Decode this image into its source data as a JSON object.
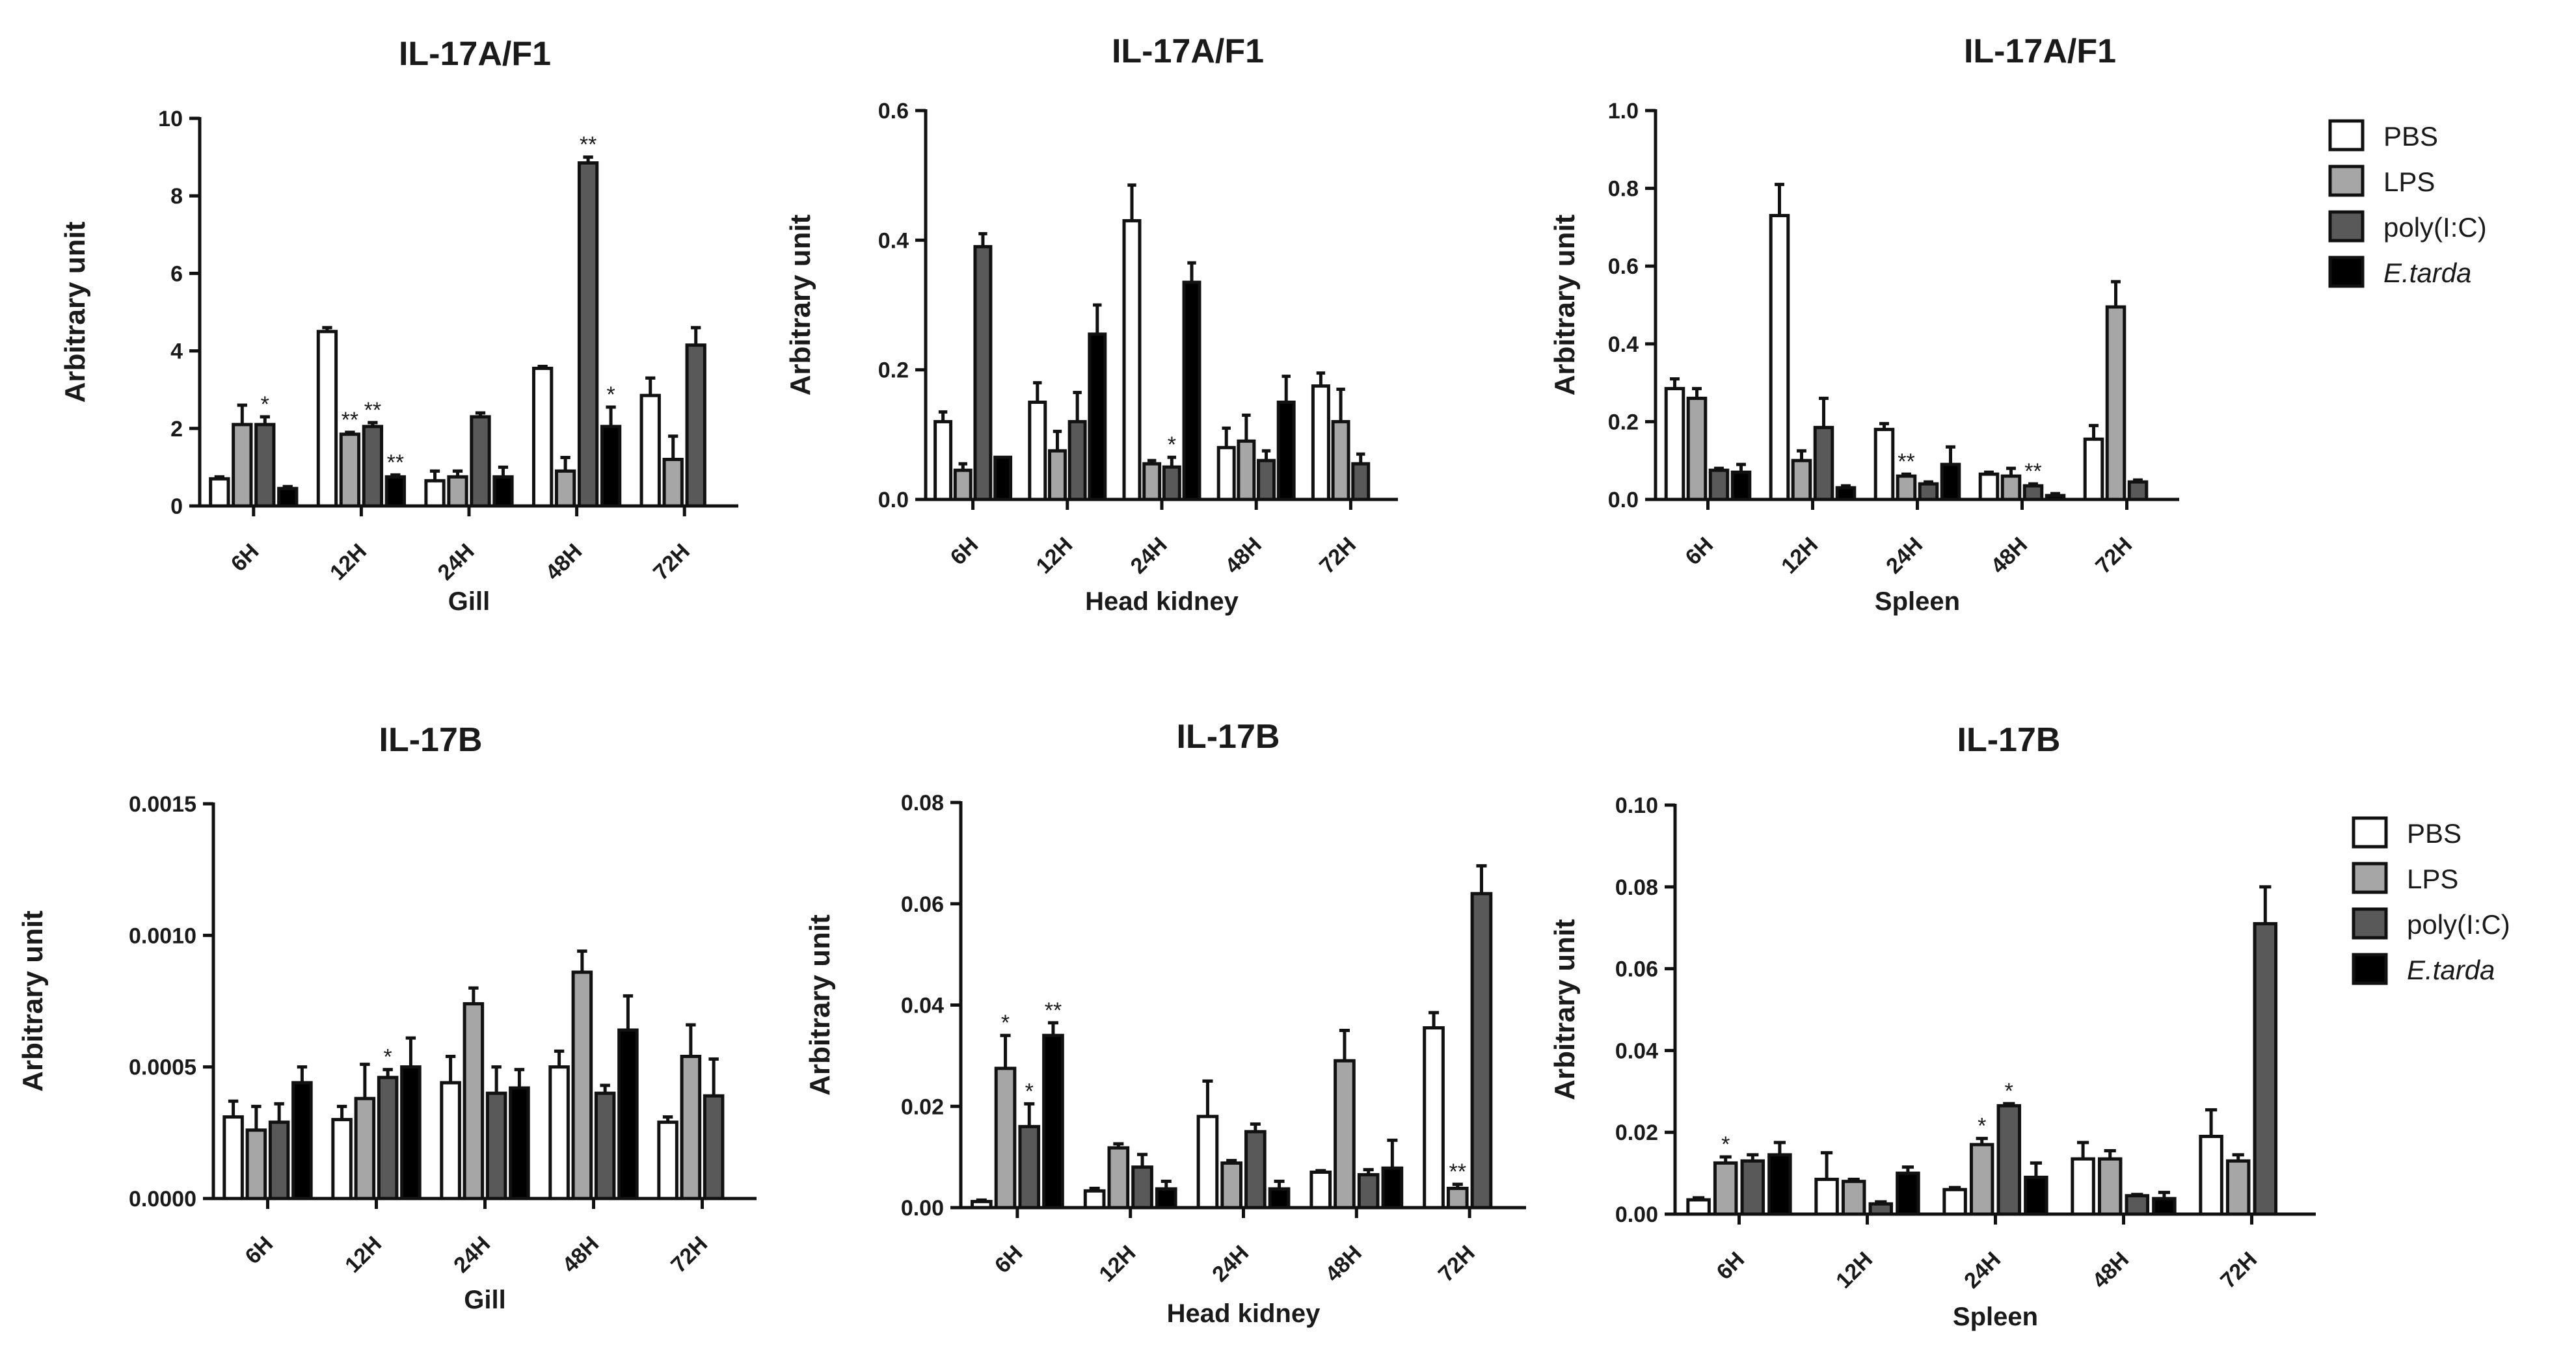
{
  "legend": [
    {
      "label": "PBS",
      "color": "#ffffff",
      "italic": false
    },
    {
      "label": "LPS",
      "color": "#a6a6a6",
      "italic": false
    },
    {
      "label": "poly(I:C)",
      "color": "#595959",
      "italic": false
    },
    {
      "label": "E.tarda",
      "color": "#000000",
      "italic": true
    }
  ],
  "chart_data": [
    {
      "type": "bar",
      "title": "IL-17A/F1",
      "xlabel": "Gill",
      "ylabel": "Arbitrary unit",
      "categories": [
        "6H",
        "12H",
        "24H",
        "48H",
        "72H"
      ],
      "ylim": [
        0,
        10
      ],
      "yticks": [
        "0",
        "2",
        "4",
        "6",
        "8",
        "10"
      ],
      "series": [
        {
          "name": "PBS",
          "values": [
            0.7,
            4.5,
            0.65,
            3.55,
            2.85
          ],
          "errors": [
            0.05,
            0.1,
            0.25,
            0.05,
            0.45
          ]
        },
        {
          "name": "LPS",
          "values": [
            2.1,
            1.85,
            0.75,
            0.9,
            1.2
          ],
          "errors": [
            0.5,
            0.05,
            0.15,
            0.35,
            0.6
          ]
        },
        {
          "name": "poly(I:C)",
          "values": [
            2.1,
            2.05,
            2.3,
            8.85,
            4.15
          ],
          "errors": [
            0.2,
            0.1,
            0.1,
            0.15,
            0.45
          ]
        },
        {
          "name": "E.tarda",
          "values": [
            0.45,
            0.75,
            0.75,
            2.05,
            null
          ],
          "errors": [
            0.05,
            0.05,
            0.25,
            0.5,
            null
          ]
        }
      ],
      "significance": [
        {
          "category": "6H",
          "series": "poly(I:C)",
          "mark": "*"
        },
        {
          "category": "12H",
          "series": "LPS",
          "mark": "**"
        },
        {
          "category": "12H",
          "series": "poly(I:C)",
          "mark": "**"
        },
        {
          "category": "12H",
          "series": "E.tarda",
          "mark": "**"
        },
        {
          "category": "48H",
          "series": "poly(I:C)",
          "mark": "**"
        },
        {
          "category": "48H",
          "series": "E.tarda",
          "mark": "*"
        }
      ]
    },
    {
      "type": "bar",
      "title": "IL-17A/F1",
      "xlabel": "Head kidney",
      "ylabel": "Arbitrary unit",
      "categories": [
        "6H",
        "12H",
        "24H",
        "48H",
        "72H"
      ],
      "ylim": [
        0,
        0.6
      ],
      "yticks": [
        "0.0",
        "0.2",
        "0.4",
        "0.6"
      ],
      "series": [
        {
          "name": "PBS",
          "values": [
            0.12,
            0.15,
            0.43,
            0.08,
            0.175
          ],
          "errors": [
            0.015,
            0.03,
            0.055,
            0.03,
            0.02
          ]
        },
        {
          "name": "LPS",
          "values": [
            0.045,
            0.075,
            0.055,
            0.09,
            0.12
          ],
          "errors": [
            0.01,
            0.03,
            0.005,
            0.04,
            0.05
          ]
        },
        {
          "name": "poly(I:C)",
          "values": [
            0.39,
            0.12,
            0.05,
            0.06,
            0.055
          ],
          "errors": [
            0.02,
            0.045,
            0.015,
            0.015,
            0.015
          ]
        },
        {
          "name": "E.tarda",
          "values": [
            0.065,
            0.255,
            0.335,
            0.15,
            null
          ],
          "errors": [
            0.0,
            0.045,
            0.03,
            0.04,
            null
          ]
        }
      ],
      "significance": [
        {
          "category": "24H",
          "series": "poly(I:C)",
          "mark": "*"
        }
      ]
    },
    {
      "type": "bar",
      "title": "IL-17A/F1",
      "xlabel": "Spleen",
      "ylabel": "Arbitrary unit",
      "categories": [
        "6H",
        "12H",
        "24H",
        "48H",
        "72H"
      ],
      "ylim": [
        0,
        1.0
      ],
      "yticks": [
        "0.0",
        "0.2",
        "0.4",
        "0.6",
        "0.8",
        "1.0"
      ],
      "series": [
        {
          "name": "PBS",
          "values": [
            0.285,
            0.73,
            0.18,
            0.065,
            0.155
          ],
          "errors": [
            0.025,
            0.08,
            0.015,
            0.005,
            0.035
          ]
        },
        {
          "name": "LPS",
          "values": [
            0.26,
            0.1,
            0.06,
            0.06,
            0.495
          ],
          "errors": [
            0.025,
            0.025,
            0.005,
            0.02,
            0.065
          ]
        },
        {
          "name": "poly(I:C)",
          "values": [
            0.075,
            0.185,
            0.04,
            0.035,
            0.045
          ],
          "errors": [
            0.005,
            0.075,
            0.005,
            0.005,
            0.005
          ]
        },
        {
          "name": "E.tarda",
          "values": [
            0.07,
            0.03,
            0.09,
            0.01,
            null
          ],
          "errors": [
            0.02,
            0.005,
            0.045,
            0.005,
            null
          ]
        }
      ],
      "significance": [
        {
          "category": "24H",
          "series": "LPS",
          "mark": "**"
        },
        {
          "category": "48H",
          "series": "poly(I:C)",
          "mark": "**"
        }
      ]
    },
    {
      "type": "bar",
      "title": "IL-17B",
      "xlabel": "Gill",
      "ylabel": "Arbitrary unit",
      "categories": [
        "6H",
        "12H",
        "24H",
        "48H",
        "72H"
      ],
      "ylim": [
        0,
        0.0015
      ],
      "yticks": [
        "0.0000",
        "0.0005",
        "0.0010",
        "0.0015"
      ],
      "series": [
        {
          "name": "PBS",
          "values": [
            0.00031,
            0.0003,
            0.00044,
            0.0005,
            0.00029
          ],
          "errors": [
            6e-05,
            5e-05,
            0.0001,
            6e-05,
            2e-05
          ]
        },
        {
          "name": "LPS",
          "values": [
            0.00026,
            0.00038,
            0.00074,
            0.00086,
            0.00054
          ],
          "errors": [
            9e-05,
            0.00013,
            6e-05,
            8e-05,
            0.00012
          ]
        },
        {
          "name": "poly(I:C)",
          "values": [
            0.00029,
            0.00046,
            0.0004,
            0.0004,
            0.00039
          ],
          "errors": [
            7e-05,
            3e-05,
            0.0001,
            3e-05,
            0.00014
          ]
        },
        {
          "name": "E.tarda",
          "values": [
            0.00044,
            0.0005,
            0.00042,
            0.00064,
            null
          ],
          "errors": [
            6e-05,
            0.00011,
            7e-05,
            0.00013,
            null
          ]
        }
      ],
      "significance": [
        {
          "category": "12H",
          "series": "poly(I:C)",
          "mark": "*"
        }
      ]
    },
    {
      "type": "bar",
      "title": "IL-17B",
      "xlabel": "Head kidney",
      "ylabel": "Arbitrary unit",
      "categories": [
        "6H",
        "12H",
        "24H",
        "48H",
        "72H"
      ],
      "ylim": [
        0,
        0.08
      ],
      "yticks": [
        "0.00",
        "0.02",
        "0.04",
        "0.06",
        "0.08"
      ],
      "series": [
        {
          "name": "PBS",
          "values": [
            0.0012,
            0.0033,
            0.018,
            0.007,
            0.0355
          ],
          "errors": [
            0.0003,
            0.0005,
            0.007,
            0.0003,
            0.003
          ]
        },
        {
          "name": "LPS",
          "values": [
            0.0275,
            0.0118,
            0.0088,
            0.029,
            0.0038
          ],
          "errors": [
            0.0065,
            0.0008,
            0.0005,
            0.006,
            0.0008
          ]
        },
        {
          "name": "poly(I:C)",
          "values": [
            0.016,
            0.008,
            0.015,
            0.0065,
            0.062
          ],
          "errors": [
            0.0045,
            0.0025,
            0.0015,
            0.001,
            0.0055
          ]
        },
        {
          "name": "E.tarda",
          "values": [
            0.034,
            0.0037,
            0.0037,
            0.0078,
            null
          ],
          "errors": [
            0.0025,
            0.0015,
            0.0015,
            0.0055,
            null
          ]
        }
      ],
      "significance": [
        {
          "category": "6H",
          "series": "LPS",
          "mark": "*"
        },
        {
          "category": "6H",
          "series": "poly(I:C)",
          "mark": "*"
        },
        {
          "category": "6H",
          "series": "E.tarda",
          "mark": "**"
        },
        {
          "category": "72H",
          "series": "LPS",
          "mark": "**"
        }
      ]
    },
    {
      "type": "bar",
      "title": "IL-17B",
      "xlabel": "Spleen",
      "ylabel": "Arbitrary unit",
      "categories": [
        "6H",
        "12H",
        "24H",
        "48H",
        "72H"
      ],
      "ylim": [
        0,
        0.1
      ],
      "yticks": [
        "0.00",
        "0.02",
        "0.04",
        "0.06",
        "0.08",
        "0.10"
      ],
      "series": [
        {
          "name": "PBS",
          "values": [
            0.0035,
            0.0085,
            0.006,
            0.0135,
            0.019
          ],
          "errors": [
            0.0005,
            0.0065,
            0.0005,
            0.004,
            0.0065
          ]
        },
        {
          "name": "LPS",
          "values": [
            0.0125,
            0.008,
            0.017,
            0.0135,
            0.013
          ],
          "errors": [
            0.0015,
            0.0005,
            0.0015,
            0.002,
            0.0015
          ]
        },
        {
          "name": "poly(I:C)",
          "values": [
            0.013,
            0.0025,
            0.0265,
            0.0045,
            0.071
          ],
          "errors": [
            0.0015,
            0.0005,
            0.0005,
            0.0003,
            0.009
          ]
        },
        {
          "name": "E.tarda",
          "values": [
            0.0145,
            0.01,
            0.009,
            0.0038,
            null
          ],
          "errors": [
            0.003,
            0.0015,
            0.0035,
            0.0015,
            null
          ]
        }
      ],
      "significance": [
        {
          "category": "6H",
          "series": "LPS",
          "mark": "*"
        },
        {
          "category": "24H",
          "series": "LPS",
          "mark": "*"
        },
        {
          "category": "24H",
          "series": "poly(I:C)",
          "mark": "*"
        }
      ]
    }
  ]
}
